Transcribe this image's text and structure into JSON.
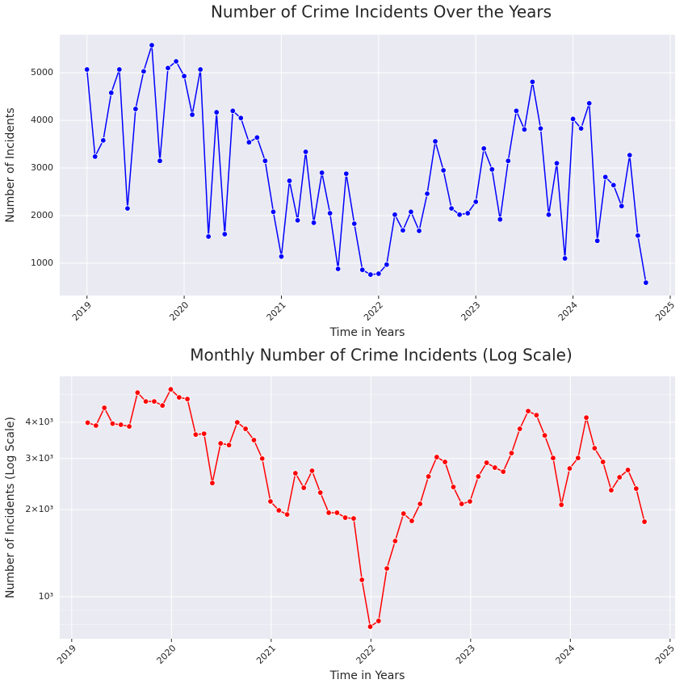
{
  "chart_data": [
    {
      "type": "line",
      "title": "Number of Crime Incidents Over the Years",
      "xlabel": "Time in Years",
      "ylabel": "Number of Incidents",
      "x": [
        2019,
        2019.083,
        2019.167,
        2019.25,
        2019.333,
        2019.417,
        2019.5,
        2019.583,
        2019.667,
        2019.75,
        2019.833,
        2019.917,
        2020,
        2020.083,
        2020.167,
        2020.25,
        2020.333,
        2020.417,
        2020.5,
        2020.583,
        2020.667,
        2020.75,
        2020.833,
        2020.917,
        2021,
        2021.083,
        2021.167,
        2021.25,
        2021.333,
        2021.417,
        2021.5,
        2021.583,
        2021.667,
        2021.75,
        2021.833,
        2021.917,
        2022,
        2022.083,
        2022.167,
        2022.25,
        2022.333,
        2022.417,
        2022.5,
        2022.583,
        2022.667,
        2022.75,
        2022.833,
        2022.917,
        2023,
        2023.083,
        2023.167,
        2023.25,
        2023.333,
        2023.417,
        2023.5,
        2023.583,
        2023.667,
        2023.75,
        2023.833,
        2023.917,
        2024,
        2024.083,
        2024.167,
        2024.25,
        2024.333,
        2024.417,
        2024.5,
        2024.583,
        2024.667,
        2024.75
      ],
      "values": [
        5070,
        3240,
        3580,
        4580,
        5070,
        2150,
        4240,
        5030,
        5580,
        3150,
        5100,
        5240,
        4930,
        4120,
        5070,
        1560,
        4170,
        1610,
        4200,
        4050,
        3540,
        3640,
        3150,
        2080,
        1140,
        2730,
        1900,
        3340,
        1850,
        2900,
        2050,
        880,
        2880,
        1830,
        860,
        760,
        780,
        970,
        2020,
        1690,
        2080,
        1680,
        2460,
        3560,
        2950,
        2150,
        2020,
        2050,
        2290,
        3410,
        2970,
        1920,
        3150,
        4200,
        3810,
        4810,
        3830,
        2020,
        3100,
        1100,
        4030,
        3830,
        4360,
        1470,
        2810,
        2640,
        2200,
        3270,
        1580,
        590
      ],
      "color": "#0000ff",
      "xlim": [
        2018.72,
        2025.05
      ],
      "xticks": [
        2019,
        2020,
        2021,
        2022,
        2023,
        2024,
        2025
      ],
      "ylim": [
        320,
        5800
      ],
      "yticks": [
        1000,
        2000,
        3000,
        4000,
        5000
      ],
      "log_y": false,
      "grid": true
    },
    {
      "type": "line",
      "title": "Monthly Number of Crime Incidents (Log Scale)",
      "xlabel": "Time in Years",
      "ylabel": "Number of Incidents (Log Scale)",
      "x": [
        2019.16,
        2019.243,
        2019.327,
        2019.41,
        2019.493,
        2019.577,
        2019.66,
        2019.743,
        2019.827,
        2019.91,
        2019.993,
        2020.077,
        2020.16,
        2020.243,
        2020.327,
        2020.41,
        2020.493,
        2020.577,
        2020.66,
        2020.743,
        2020.827,
        2020.91,
        2020.993,
        2021.077,
        2021.16,
        2021.243,
        2021.327,
        2021.41,
        2021.493,
        2021.577,
        2021.66,
        2021.743,
        2021.827,
        2021.91,
        2021.993,
        2022.077,
        2022.16,
        2022.243,
        2022.327,
        2022.41,
        2022.493,
        2022.577,
        2022.66,
        2022.743,
        2022.827,
        2022.91,
        2022.993,
        2023.077,
        2023.16,
        2023.243,
        2023.327,
        2023.41,
        2023.493,
        2023.577,
        2023.66,
        2023.743,
        2023.827,
        2023.91,
        2023.993,
        2024.077,
        2024.16,
        2024.243,
        2024.327,
        2024.41,
        2024.493,
        2024.577,
        2024.66,
        2024.743
      ],
      "values": [
        3990,
        3900,
        4490,
        3960,
        3925,
        3873,
        5070,
        4725,
        4725,
        4575,
        5200,
        4880,
        4815,
        3630,
        3655,
        2470,
        3385,
        3340,
        4000,
        3800,
        3475,
        3000,
        2133,
        1987,
        1923,
        2670,
        2378,
        2722,
        2288,
        1950,
        1950,
        1875,
        1863,
        1144,
        788,
        825,
        1252,
        1557,
        1936,
        1828,
        2092,
        2602,
        3035,
        2921,
        2393,
        2092,
        2133,
        2602,
        2902,
        2792,
        2703,
        3133,
        3800,
        4375,
        4237,
        3606,
        3013,
        2078,
        2773,
        3013,
        4155,
        3258,
        2921,
        2333,
        2585,
        2739,
        2363,
        1816
      ],
      "color": "#ff0000",
      "xlim": [
        2018.88,
        2025.05
      ],
      "xticks": [
        2019,
        2020,
        2021,
        2022,
        2023,
        2024,
        2025
      ],
      "ylim": [
        716,
        5770
      ],
      "yticks": [
        {
          "value": 1000,
          "label": "10³"
        },
        {
          "value": 2000,
          "label": "2×10³"
        },
        {
          "value": 3000,
          "label": "3×10³"
        },
        {
          "value": 4000,
          "label": "4×10³"
        }
      ],
      "yminorticks": [
        700,
        800,
        900,
        5000
      ],
      "log_y": true,
      "grid": true
    }
  ]
}
